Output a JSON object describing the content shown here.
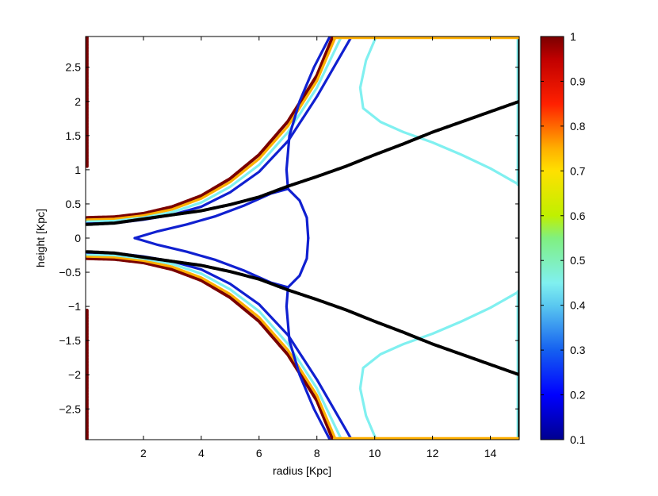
{
  "chart_data": {
    "type": "line",
    "subtype": "contour",
    "title": "",
    "xlabel": "radius [Kpc]",
    "ylabel": "height [Kpc]",
    "xlim": [
      0,
      15
    ],
    "ylim": [
      -2.95,
      2.95
    ],
    "xticks": [
      2,
      4,
      6,
      8,
      10,
      12,
      14
    ],
    "yticks": [
      -2.5,
      -2,
      -1.5,
      -1,
      -0.5,
      0,
      0.5,
      1,
      1.5,
      2,
      2.5
    ],
    "xtick_labels": [
      "2",
      "4",
      "6",
      "8",
      "10",
      "12",
      "14"
    ],
    "ytick_labels": [
      "−2.5",
      "−2",
      "−1.5",
      "−1",
      "−0.5",
      "0",
      "0.5",
      "1",
      "1.5",
      "2",
      "2.5"
    ],
    "grid": false,
    "colorbar": {
      "colormap": "jet",
      "range": [
        0.1,
        1
      ],
      "ticks": [
        0.1,
        0.2,
        0.3,
        0.4,
        0.5,
        0.6,
        0.7,
        0.8,
        0.9,
        1
      ],
      "tick_labels": [
        "0.1",
        "0.2",
        "0.3",
        "0.4",
        "0.5",
        "0.6",
        "0.7",
        "0.8",
        "0.9",
        "1"
      ]
    },
    "series": [
      {
        "color": "#7a0000",
        "style": "dotted-thick",
        "mirror": true,
        "points": [
          [
            0.05,
            0.3
          ],
          [
            1,
            0.31
          ],
          [
            2,
            0.36
          ],
          [
            3,
            0.46
          ],
          [
            4,
            0.62
          ],
          [
            5,
            0.87
          ],
          [
            6,
            1.22
          ],
          [
            7,
            1.71
          ],
          [
            8,
            2.38
          ],
          [
            8.55,
            2.95
          ]
        ]
      },
      {
        "color": "#ffb000",
        "mirror": true,
        "points": [
          [
            0.05,
            0.27
          ],
          [
            1,
            0.28
          ],
          [
            2,
            0.33
          ],
          [
            3,
            0.42
          ],
          [
            4,
            0.58
          ],
          [
            5,
            0.82
          ],
          [
            6,
            1.16
          ],
          [
            7,
            1.64
          ],
          [
            8,
            2.3
          ],
          [
            8.65,
            2.95
          ]
        ]
      },
      {
        "color": "#80f0f0",
        "mirror": true,
        "points": [
          [
            0.05,
            0.24
          ],
          [
            1,
            0.25
          ],
          [
            2,
            0.3
          ],
          [
            3,
            0.38
          ],
          [
            4,
            0.52
          ],
          [
            5,
            0.75
          ],
          [
            6,
            1.07
          ],
          [
            7,
            1.55
          ],
          [
            8,
            2.2
          ],
          [
            8.85,
            2.95
          ]
        ]
      },
      {
        "color": "#1020d0",
        "mirror": true,
        "points": [
          [
            0.05,
            0.21
          ],
          [
            1,
            0.22
          ],
          [
            2,
            0.27
          ],
          [
            3,
            0.34
          ],
          [
            4,
            0.46
          ],
          [
            5,
            0.67
          ],
          [
            6,
            0.97
          ],
          [
            7,
            1.42
          ],
          [
            8,
            2.07
          ],
          [
            9.2,
            2.95
          ]
        ]
      },
      {
        "color": "#1020d0",
        "mirror": true,
        "points": [
          [
            1.7,
            0.0
          ],
          [
            2.5,
            0.1
          ],
          [
            3.5,
            0.2
          ],
          [
            4.5,
            0.32
          ],
          [
            5.5,
            0.48
          ],
          [
            6.4,
            0.65
          ],
          [
            7.0,
            0.72
          ],
          [
            7.4,
            0.55
          ],
          [
            7.65,
            0.3
          ],
          [
            7.7,
            0.0
          ]
        ]
      },
      {
        "color": "#1020d0",
        "mirror": true,
        "points": [
          [
            7.0,
            0.72
          ],
          [
            6.95,
            1.0
          ],
          [
            7.05,
            1.5
          ],
          [
            7.4,
            2.0
          ],
          [
            7.9,
            2.5
          ],
          [
            8.45,
            2.95
          ]
        ]
      },
      {
        "color": "#80f0f0",
        "mirror": true,
        "points": [
          [
            10.05,
            2.95
          ],
          [
            9.7,
            2.6
          ],
          [
            9.5,
            2.2
          ],
          [
            9.6,
            1.9
          ],
          [
            10.2,
            1.7
          ],
          [
            11,
            1.55
          ],
          [
            12,
            1.4
          ],
          [
            13,
            1.22
          ],
          [
            14,
            1.02
          ],
          [
            15,
            0.78
          ]
        ]
      },
      {
        "color": "#80f0f0",
        "mirror": true,
        "points": [
          [
            14.95,
            0.78
          ],
          [
            14.95,
            2.95
          ]
        ]
      },
      {
        "color": "#000000",
        "style": "dotted-thick",
        "mirror": true,
        "points": [
          [
            0.05,
            0.2
          ],
          [
            1,
            0.22
          ],
          [
            2,
            0.28
          ],
          [
            3,
            0.34
          ],
          [
            4,
            0.4
          ],
          [
            5,
            0.49
          ],
          [
            6,
            0.6
          ],
          [
            7,
            0.76
          ],
          [
            8,
            0.9
          ],
          [
            9,
            1.05
          ],
          [
            10,
            1.22
          ],
          [
            11,
            1.38
          ],
          [
            12,
            1.55
          ],
          [
            13,
            1.7
          ],
          [
            14,
            1.85
          ],
          [
            15,
            2.0
          ]
        ]
      },
      {
        "color": "#000000",
        "mirror": false,
        "points": [
          [
            15,
            -2.95
          ],
          [
            15,
            2.95
          ]
        ]
      },
      {
        "color": "#7a0000",
        "style": "dotted-thick",
        "mirror": false,
        "points": [
          [
            0.05,
            -2.95
          ],
          [
            0.05,
            -1.05
          ]
        ]
      },
      {
        "color": "#7a0000",
        "style": "dotted-thick",
        "mirror": false,
        "points": [
          [
            0.05,
            1.05
          ],
          [
            0.05,
            2.95
          ]
        ]
      },
      {
        "color": "#7a0000",
        "style": "dotted-thick",
        "mirror": true,
        "points": [
          [
            8.55,
            2.95
          ],
          [
            15,
            2.95
          ]
        ]
      },
      {
        "color": "#ffb000",
        "mirror": true,
        "points": [
          [
            8.6,
            2.93
          ],
          [
            15,
            2.93
          ]
        ]
      }
    ]
  }
}
